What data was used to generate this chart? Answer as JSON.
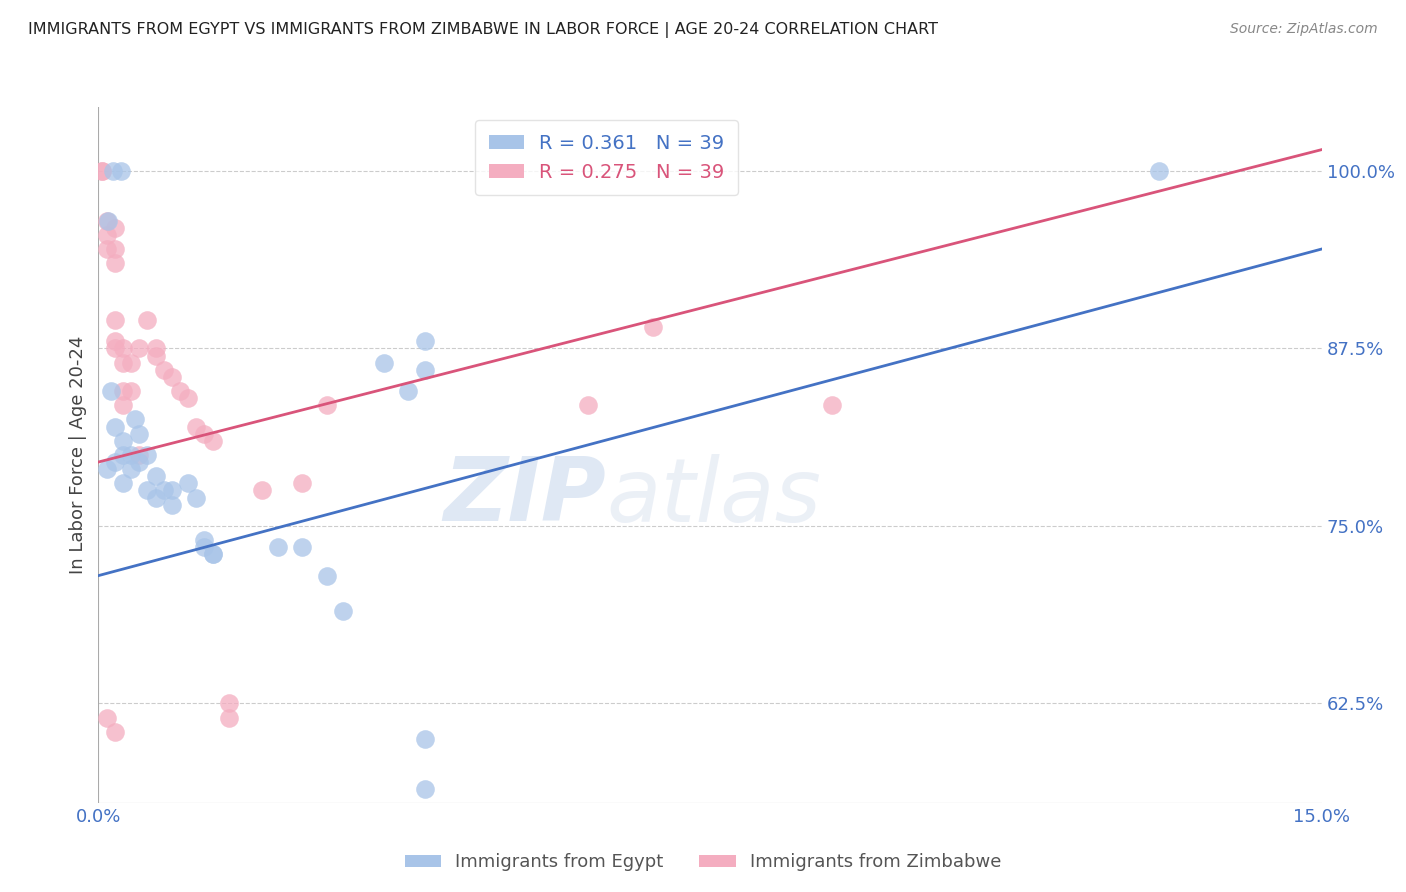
{
  "title": "IMMIGRANTS FROM EGYPT VS IMMIGRANTS FROM ZIMBABWE IN LABOR FORCE | AGE 20-24 CORRELATION CHART",
  "source": "Source: ZipAtlas.com",
  "ylabel": "In Labor Force | Age 20-24",
  "xlim": [
    0.0,
    0.15
  ],
  "ylim": [
    0.555,
    1.045
  ],
  "yticks": [
    0.625,
    0.75,
    0.875,
    1.0
  ],
  "ytick_labels": [
    "62.5%",
    "75.0%",
    "87.5%",
    "100.0%"
  ],
  "xticks": [
    0.0,
    0.15
  ],
  "xtick_labels": [
    "0.0%",
    "15.0%"
  ],
  "legend_bottom": [
    "Immigrants from Egypt",
    "Immigrants from Zimbabwe"
  ],
  "egypt_color": "#a8c4e8",
  "zimbabwe_color": "#f4adc0",
  "egypt_R": 0.361,
  "egypt_N": 39,
  "zimbabwe_R": 0.275,
  "zimbabwe_N": 39,
  "watermark_zip": "ZIP",
  "watermark_atlas": "atlas",
  "egypt_line_x0": 0.0,
  "egypt_line_y0": 0.715,
  "egypt_line_x1": 0.15,
  "egypt_line_y1": 0.945,
  "zimbabwe_line_x0": 0.0,
  "zimbabwe_line_y0": 0.795,
  "zimbabwe_line_x1": 0.15,
  "zimbabwe_line_y1": 1.015,
  "egypt_scatter": [
    [
      0.0012,
      0.965
    ],
    [
      0.0018,
      1.0
    ],
    [
      0.0028,
      1.0
    ],
    [
      0.001,
      0.79
    ],
    [
      0.0015,
      0.845
    ],
    [
      0.002,
      0.82
    ],
    [
      0.002,
      0.795
    ],
    [
      0.003,
      0.81
    ],
    [
      0.003,
      0.8
    ],
    [
      0.003,
      0.78
    ],
    [
      0.004,
      0.8
    ],
    [
      0.004,
      0.79
    ],
    [
      0.0045,
      0.825
    ],
    [
      0.005,
      0.815
    ],
    [
      0.005,
      0.795
    ],
    [
      0.006,
      0.8
    ],
    [
      0.006,
      0.775
    ],
    [
      0.007,
      0.785
    ],
    [
      0.007,
      0.77
    ],
    [
      0.008,
      0.775
    ],
    [
      0.009,
      0.775
    ],
    [
      0.009,
      0.765
    ],
    [
      0.011,
      0.78
    ],
    [
      0.012,
      0.77
    ],
    [
      0.013,
      0.74
    ],
    [
      0.013,
      0.735
    ],
    [
      0.014,
      0.73
    ],
    [
      0.014,
      0.73
    ],
    [
      0.022,
      0.735
    ],
    [
      0.025,
      0.735
    ],
    [
      0.028,
      0.715
    ],
    [
      0.03,
      0.69
    ],
    [
      0.035,
      0.865
    ],
    [
      0.038,
      0.845
    ],
    [
      0.04,
      0.88
    ],
    [
      0.04,
      0.86
    ],
    [
      0.04,
      0.565
    ],
    [
      0.04,
      0.6
    ],
    [
      0.13,
      1.0
    ]
  ],
  "zimbabwe_scatter": [
    [
      0.0005,
      1.0
    ],
    [
      0.0005,
      1.0
    ],
    [
      0.001,
      0.965
    ],
    [
      0.001,
      0.955
    ],
    [
      0.001,
      0.945
    ],
    [
      0.002,
      0.96
    ],
    [
      0.002,
      0.945
    ],
    [
      0.002,
      0.935
    ],
    [
      0.002,
      0.895
    ],
    [
      0.002,
      0.88
    ],
    [
      0.002,
      0.875
    ],
    [
      0.003,
      0.875
    ],
    [
      0.003,
      0.865
    ],
    [
      0.003,
      0.845
    ],
    [
      0.003,
      0.835
    ],
    [
      0.004,
      0.865
    ],
    [
      0.004,
      0.845
    ],
    [
      0.005,
      0.875
    ],
    [
      0.005,
      0.8
    ],
    [
      0.006,
      0.895
    ],
    [
      0.007,
      0.875
    ],
    [
      0.007,
      0.87
    ],
    [
      0.008,
      0.86
    ],
    [
      0.009,
      0.855
    ],
    [
      0.01,
      0.845
    ],
    [
      0.011,
      0.84
    ],
    [
      0.012,
      0.82
    ],
    [
      0.013,
      0.815
    ],
    [
      0.014,
      0.81
    ],
    [
      0.016,
      0.625
    ],
    [
      0.016,
      0.615
    ],
    [
      0.02,
      0.775
    ],
    [
      0.025,
      0.78
    ],
    [
      0.028,
      0.835
    ],
    [
      0.06,
      0.835
    ],
    [
      0.068,
      0.89
    ],
    [
      0.09,
      0.835
    ],
    [
      0.001,
      0.615
    ],
    [
      0.002,
      0.605
    ]
  ],
  "title_color": "#222222",
  "axis_color": "#4472c4",
  "line_egypt_color": "#4472c4",
  "line_zimbabwe_color": "#d9547a",
  "background_color": "#ffffff",
  "grid_color": "#cccccc"
}
